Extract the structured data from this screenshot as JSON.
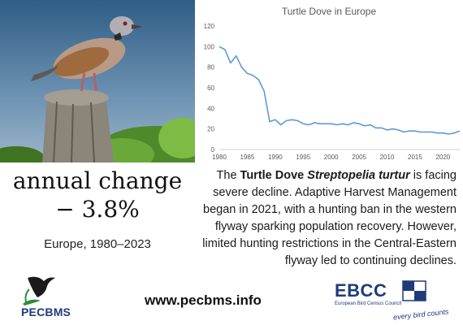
{
  "photo": {
    "subject": "turtle-dove-on-post"
  },
  "chart_data": {
    "type": "line",
    "title": "Turtle Dove in Europe",
    "xlabel": "",
    "ylabel": "",
    "xlim": [
      1980,
      2023
    ],
    "ylim": [
      0,
      120
    ],
    "x_ticks": [
      1980,
      1985,
      1990,
      1995,
      2000,
      2005,
      2010,
      2015,
      2020
    ],
    "y_ticks": [
      0,
      20,
      40,
      60,
      80,
      100,
      120
    ],
    "grid": false,
    "series": [
      {
        "color": "#5b9bd5",
        "x": [
          1980,
          1981,
          1982,
          1983,
          1984,
          1985,
          1986,
          1987,
          1988,
          1989,
          1990,
          1991,
          1992,
          1993,
          1994,
          1995,
          1996,
          1997,
          1998,
          1999,
          2000,
          2001,
          2002,
          2003,
          2004,
          2005,
          2006,
          2007,
          2008,
          2009,
          2010,
          2011,
          2012,
          2013,
          2014,
          2015,
          2016,
          2017,
          2018,
          2019,
          2020,
          2021,
          2022,
          2023
        ],
        "y": [
          100,
          97,
          84,
          91,
          80,
          74,
          72,
          68,
          57,
          27,
          29,
          24,
          28,
          29,
          28,
          25,
          24,
          26,
          25,
          25,
          25,
          24,
          25,
          24,
          26,
          25,
          23,
          24,
          21,
          21,
          19,
          20,
          19,
          17,
          18,
          18,
          17,
          17,
          17,
          16,
          16,
          15,
          16,
          18
        ]
      }
    ]
  },
  "stat": {
    "title": "annual change",
    "value": "− 3.8%",
    "region": "Europe, 1980–2023"
  },
  "description": {
    "prefix": "The ",
    "common_name": "Turtle Dove",
    "scientific_name": "Streptopelia turtur",
    "suffix": " is facing severe decline. Adaptive Harvest Management began in 2021, with a hunting ban in the western flyway sparking population recovery. However, limited hunting restrictions in the Central-Eastern flyway led to continuing declines."
  },
  "footer": {
    "url": "www.pecbms.info",
    "pecbms_logo": "PECBMS",
    "ebcc_logo": "EBCC",
    "ebcc_name": "European Bird Census Council",
    "ebcc_tagline": "every bird counts"
  },
  "colors": {
    "line": "#5b9bd5",
    "logo_blue": "#1f3b7a"
  }
}
